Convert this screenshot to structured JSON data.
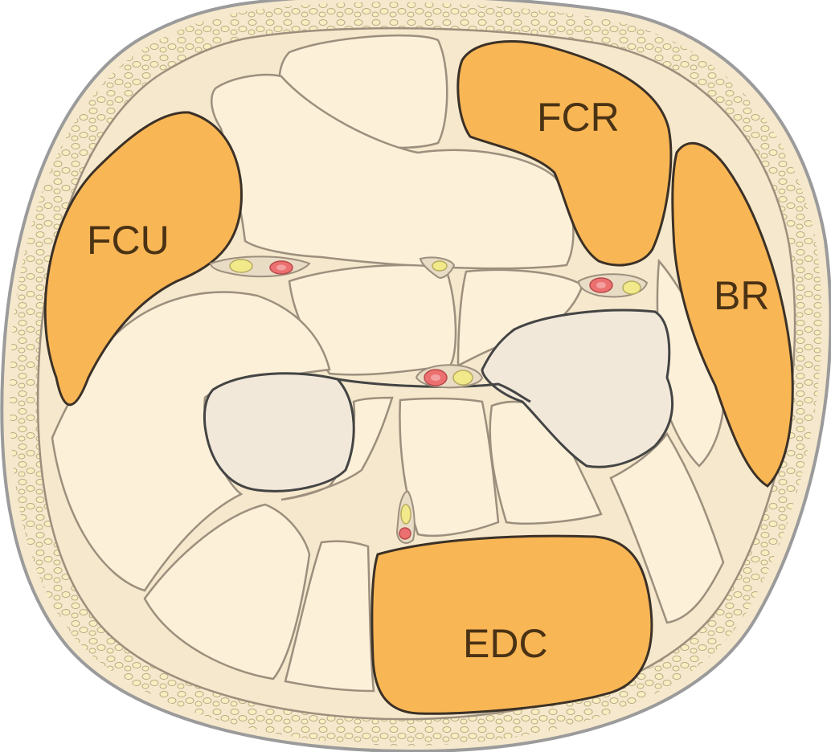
{
  "diagram": {
    "labels": {
      "fcu": "FCU",
      "fcr": "FCR",
      "br": "BR",
      "edc": "EDC"
    },
    "colors": {
      "outline": "#9b9b9b",
      "skin": "#f6e8cc",
      "muscle_light": "#fdf0d9",
      "muscle_highlight": "#f9b655",
      "muscle_highlight_stroke": "#3b3127",
      "muscle_stroke": "#9c8f7d",
      "bone": "#f1e8da",
      "bone_stroke": "#444444",
      "nerve": "#f1e98a",
      "artery": "#ec7070",
      "fat": "#f8eec1"
    }
  }
}
